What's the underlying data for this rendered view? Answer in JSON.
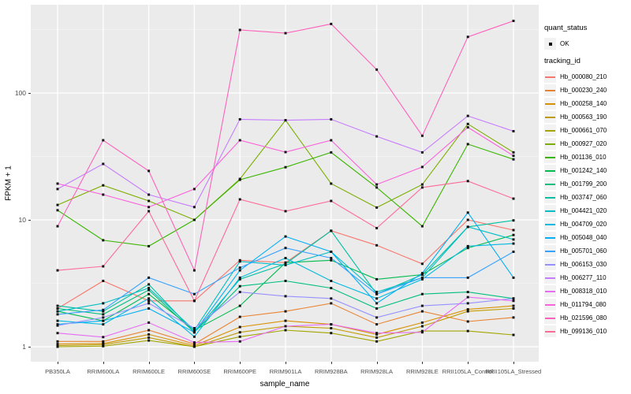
{
  "axes": {
    "x_title": "sample_name",
    "y_title": "FPKM + 1",
    "y_ticks": [
      "1",
      "10",
      "100"
    ],
    "y_tick_values": [
      1,
      10,
      100
    ]
  },
  "legend": {
    "quant_status_title": "quant_status",
    "quant_status_items": [
      {
        "label": "OK",
        "shape": "filled-point",
        "color": "#111111"
      }
    ],
    "tracking_id_title": "tracking_id"
  },
  "colors": {
    "panel_bg": "#EBEBEB",
    "grid_major": "#FFFFFF",
    "grid_minor": "#F5F5F5",
    "point": "#111111",
    "tick_label": "#4D4D4D",
    "legend_key_bg": "#F2F2F2"
  },
  "chart_data": {
    "type": "line",
    "x_label": "sample_name",
    "y_label": "FPKM + 1",
    "y_scale": "log10",
    "y_axis_ticks": [
      1,
      10,
      100
    ],
    "y_minor_gridlines": [
      3.162,
      31.62,
      316.2
    ],
    "legend_position": "right",
    "grid": true,
    "point_shape": "small-black-square",
    "categories": [
      "PB350LA",
      "RRIM600LA",
      "RRIM600LE",
      "RRIM600SE",
      "RRIM600PE",
      "RRIM901LA",
      "RRIM928BA",
      "RRIM928LA",
      "RRIM928LE",
      "RRII105LA_Control",
      "RRII105LA_Stressed"
    ],
    "series": [
      {
        "name": "Hb_000080_210",
        "color": "#F8766D",
        "values": [
          2.0,
          3.3,
          2.3,
          2.3,
          4.8,
          4.6,
          8.2,
          6.3,
          4.5,
          10.0,
          8.3
        ]
      },
      {
        "name": "Hb_000230_240",
        "color": "#EA8331",
        "values": [
          1.1,
          1.1,
          1.35,
          1.05,
          1.72,
          1.9,
          2.2,
          1.5,
          1.9,
          1.58,
          1.7
        ]
      },
      {
        "name": "Hb_000258_140",
        "color": "#D89000",
        "values": [
          1.05,
          1.06,
          1.25,
          1.02,
          1.43,
          1.6,
          1.5,
          1.25,
          1.55,
          1.97,
          2.1
        ]
      },
      {
        "name": "Hb_000563_190",
        "color": "#C09B00",
        "values": [
          1.02,
          1.04,
          1.18,
          1.0,
          1.3,
          1.45,
          1.4,
          1.18,
          1.45,
          1.9,
          2.0
        ]
      },
      {
        "name": "Hb_000661_070",
        "color": "#A3A500",
        "values": [
          1.0,
          1.01,
          1.12,
          1.0,
          1.2,
          1.35,
          1.28,
          1.1,
          1.33,
          1.33,
          1.24
        ]
      },
      {
        "name": "Hb_000927_020",
        "color": "#7CAE00",
        "values": [
          13.1,
          18.7,
          14.1,
          10.0,
          21.0,
          61.0,
          19.3,
          12.5,
          19.0,
          57.0,
          34.0
        ]
      },
      {
        "name": "Hb_001136_010",
        "color": "#39B600",
        "values": [
          11.9,
          6.9,
          6.2,
          10.0,
          20.7,
          26.0,
          34.0,
          18.0,
          8.9,
          39.5,
          30.0
        ]
      },
      {
        "name": "Hb_001242_140",
        "color": "#00BB4E",
        "values": [
          1.9,
          1.6,
          2.6,
          1.35,
          2.1,
          4.6,
          4.8,
          3.4,
          3.7,
          6.0,
          7.6
        ]
      },
      {
        "name": "Hb_001799_200",
        "color": "#00BF7D",
        "values": [
          2.0,
          1.8,
          2.8,
          1.3,
          3.0,
          3.3,
          2.9,
          2.0,
          2.6,
          2.7,
          2.4
        ]
      },
      {
        "name": "Hb_003747_060",
        "color": "#00C1A3",
        "values": [
          2.1,
          1.9,
          3.1,
          1.3,
          3.4,
          4.5,
          8.2,
          2.6,
          3.7,
          8.8,
          9.9
        ]
      },
      {
        "name": "Hb_004421_020",
        "color": "#00BFC4",
        "values": [
          1.9,
          2.2,
          2.9,
          1.35,
          4.7,
          4.4,
          5.6,
          2.7,
          3.5,
          8.8,
          7.0
        ]
      },
      {
        "name": "Hb_004709_020",
        "color": "#00BAE0",
        "values": [
          1.6,
          1.5,
          2.4,
          1.2,
          3.5,
          5.0,
          3.3,
          2.4,
          3.4,
          6.2,
          6.5
        ]
      },
      {
        "name": "Hb_005048_040",
        "color": "#00B0F6",
        "values": [
          1.5,
          1.6,
          2.0,
          1.3,
          4.0,
          7.4,
          5.6,
          2.2,
          3.8,
          11.4,
          3.5
        ]
      },
      {
        "name": "Hb_005701_060",
        "color": "#35A2FF",
        "values": [
          1.8,
          1.95,
          3.5,
          2.6,
          4.2,
          6.0,
          5.0,
          2.6,
          3.5,
          3.5,
          5.6
        ]
      },
      {
        "name": "Hb_006153_030",
        "color": "#9590FF",
        "values": [
          1.47,
          1.7,
          2.2,
          1.4,
          2.7,
          2.5,
          2.4,
          1.7,
          2.1,
          2.2,
          2.4
        ]
      },
      {
        "name": "Hb_006277_110",
        "color": "#C77CFF",
        "values": [
          17.5,
          27.6,
          15.8,
          12.6,
          62.0,
          61.0,
          62.0,
          45.5,
          34.0,
          66.0,
          50.0
        ]
      },
      {
        "name": "Hb_008318_010",
        "color": "#E76BF3",
        "values": [
          1.28,
          1.19,
          1.55,
          1.08,
          1.1,
          1.45,
          1.5,
          1.28,
          1.3,
          2.46,
          2.3
        ]
      },
      {
        "name": "Hb_011794_080",
        "color": "#FA62DB",
        "values": [
          19.3,
          15.8,
          12.6,
          17.5,
          42.4,
          34.2,
          42.4,
          19.0,
          26.1,
          53.6,
          32.0
        ]
      },
      {
        "name": "Hb_021596_080",
        "color": "#FF62BC",
        "values": [
          8.9,
          42.4,
          24.3,
          4.0,
          314,
          296,
          350,
          153,
          46,
          277,
          370
        ]
      },
      {
        "name": "Hb_099136_010",
        "color": "#FF6A98",
        "values": [
          4.0,
          4.3,
          11.7,
          2.3,
          14.5,
          11.7,
          14.1,
          8.6,
          18.0,
          20.2,
          14.7
        ]
      }
    ]
  }
}
